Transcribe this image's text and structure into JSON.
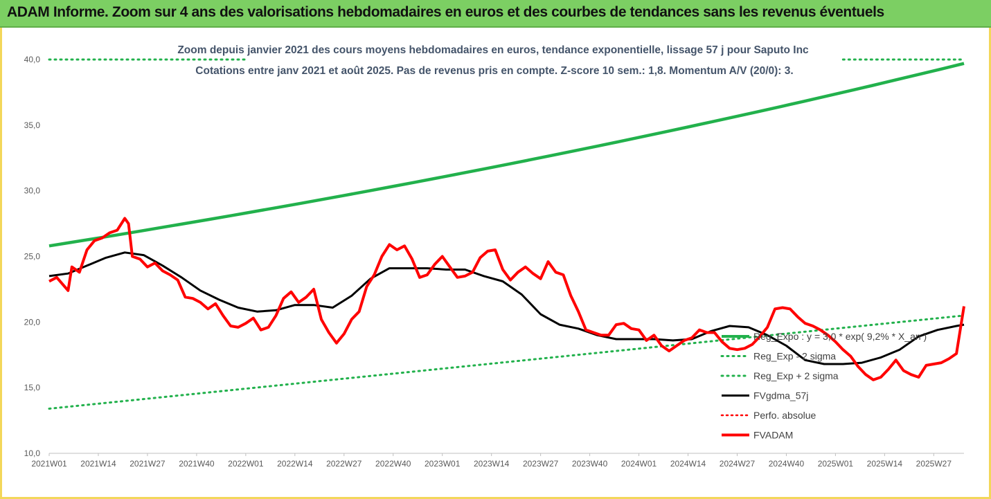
{
  "banner": {
    "title": "ADAM Informe. Zoom sur 4 ans des valorisations hebdomadaires en euros et des courbes de tendances sans les revenus éventuels"
  },
  "colors": {
    "banner": "#7ccf63",
    "trend": "#22b14c",
    "smooth": "#000000",
    "price": "#ff0000",
    "frame": "#f3d75a"
  },
  "chart_data": {
    "type": "line",
    "title": "Zoom depuis janvier 2021 des cours moyens hebdomadaires en euros, tendance exponentielle, lissage 57 j pour Saputo Inc",
    "subtitle": "Cotations entre janv 2021 et août 2025.  Pas de revenus pris en compte. Z-score 10 sem.: 1,8. Momentum A/V (20/0): 3.",
    "y_range": [
      10,
      40
    ],
    "x_range": [
      0,
      242
    ],
    "grid": false,
    "legend_position": "bottom-right",
    "y_ticks": [
      "10,0",
      "15,0",
      "20,0",
      "25,0",
      "30,0",
      "35,0",
      "40,0"
    ],
    "x_ticks": [
      "2021W01",
      "2021W14",
      "2021W27",
      "2021W40",
      "2022W01",
      "2022W14",
      "2022W27",
      "2022W40",
      "2023W01",
      "2023W14",
      "2023W27",
      "2023W40",
      "2024W01",
      "2024W14",
      "2024W27",
      "2024W40",
      "2025W01",
      "2025W14",
      "2025W27"
    ],
    "series": [
      {
        "name": "Reg_Expo : y = 3,0 * exp( 9,2% * X_an )",
        "style": "solid-thick",
        "color": "#22b14c",
        "x": [
          0,
          242
        ],
        "y": [
          25.8,
          39.7
        ]
      },
      {
        "name": "Reg_Exp - 2 sigma",
        "style": "dotted",
        "color": "#22b14c",
        "x": [],
        "y": []
      },
      {
        "name": "Reg_Exp + 2 sigma",
        "style": "dotted",
        "color": "#22b14c",
        "x": [
          0,
          242
        ],
        "y": [
          13.4,
          20.5
        ]
      },
      {
        "name": "FVgdma_57j",
        "style": "solid",
        "color": "#000000",
        "x": [
          0,
          5,
          10,
          15,
          20,
          25,
          30,
          35,
          40,
          45,
          50,
          55,
          60,
          65,
          70,
          75,
          80,
          85,
          90,
          95,
          100,
          105,
          110,
          115,
          120,
          125,
          130,
          135,
          140,
          145,
          150,
          155,
          160,
          165,
          170,
          175,
          180,
          185,
          190,
          195,
          200,
          205,
          210,
          215,
          220,
          225,
          230,
          235,
          240,
          242
        ],
        "y": [
          23.5,
          23.7,
          24.3,
          24.9,
          25.3,
          25.1,
          24.3,
          23.4,
          22.4,
          21.7,
          21.1,
          20.8,
          20.9,
          21.3,
          21.3,
          21.1,
          22.0,
          23.3,
          24.1,
          24.1,
          24.1,
          24.0,
          24.0,
          23.5,
          23.1,
          22.1,
          20.6,
          19.8,
          19.5,
          19.0,
          18.7,
          18.7,
          18.7,
          18.6,
          18.7,
          19.3,
          19.7,
          19.6,
          19.0,
          18.2,
          17.1,
          16.8,
          16.8,
          16.9,
          17.3,
          17.9,
          18.9,
          19.4,
          19.7,
          19.8
        ]
      },
      {
        "name": "Perfo. absolue",
        "style": "dotted",
        "color": "#ff0000",
        "x": [],
        "y": []
      },
      {
        "name": "FVADAM",
        "style": "solid-thick",
        "color": "#ff0000",
        "x": [
          0,
          2,
          5,
          6,
          8,
          10,
          12,
          14,
          16,
          18,
          20,
          21,
          22,
          24,
          26,
          28,
          30,
          32,
          34,
          36,
          38,
          40,
          42,
          44,
          46,
          48,
          50,
          52,
          54,
          56,
          58,
          60,
          62,
          64,
          66,
          68,
          70,
          72,
          74,
          76,
          78,
          80,
          82,
          84,
          86,
          88,
          90,
          92,
          94,
          96,
          98,
          100,
          102,
          104,
          106,
          108,
          110,
          112,
          114,
          116,
          118,
          120,
          122,
          124,
          126,
          128,
          130,
          132,
          134,
          136,
          138,
          140,
          142,
          144,
          146,
          148,
          150,
          152,
          154,
          156,
          158,
          160,
          162,
          164,
          166,
          168,
          170,
          172,
          174,
          176,
          178,
          180,
          182,
          184,
          186,
          188,
          190,
          192,
          194,
          196,
          198,
          200,
          202,
          204,
          206,
          208,
          210,
          212,
          214,
          216,
          218,
          220,
          222,
          224,
          226,
          228,
          230,
          232,
          234,
          236,
          238,
          240,
          242
        ],
        "y": [
          23.1,
          23.4,
          22.4,
          24.2,
          23.8,
          25.5,
          26.2,
          26.4,
          26.8,
          27.0,
          27.9,
          27.5,
          25.0,
          24.8,
          24.2,
          24.5,
          23.9,
          23.6,
          23.2,
          21.9,
          21.8,
          21.5,
          21.0,
          21.4,
          20.5,
          19.7,
          19.6,
          19.9,
          20.3,
          19.4,
          19.6,
          20.5,
          21.8,
          22.3,
          21.5,
          21.9,
          22.5,
          20.2,
          19.2,
          18.4,
          19.1,
          20.2,
          20.8,
          22.7,
          23.6,
          25.0,
          25.9,
          25.5,
          25.8,
          24.8,
          23.4,
          23.6,
          24.4,
          25.0,
          24.2,
          23.4,
          23.5,
          23.8,
          24.9,
          25.4,
          25.5,
          24.0,
          23.2,
          23.8,
          24.2,
          23.7,
          23.3,
          24.6,
          23.8,
          23.6,
          22.0,
          20.8,
          19.4,
          19.2,
          19.0,
          19.0,
          19.8,
          19.9,
          19.5,
          19.4,
          18.6,
          19.0,
          18.2,
          17.8,
          18.2,
          18.6,
          18.8,
          19.4,
          19.2,
          19.2,
          18.5,
          18.0,
          17.9,
          18.0,
          18.3,
          18.9,
          19.6,
          21.0,
          21.1,
          21.0,
          20.4,
          19.9,
          19.7,
          19.4,
          19.0,
          18.5,
          17.9,
          17.4,
          16.6,
          16.0,
          15.6,
          15.8,
          16.4,
          17.1,
          16.3,
          16.0,
          15.8,
          16.7,
          16.8,
          16.9,
          17.2,
          17.6,
          21.2
        ]
      }
    ]
  }
}
